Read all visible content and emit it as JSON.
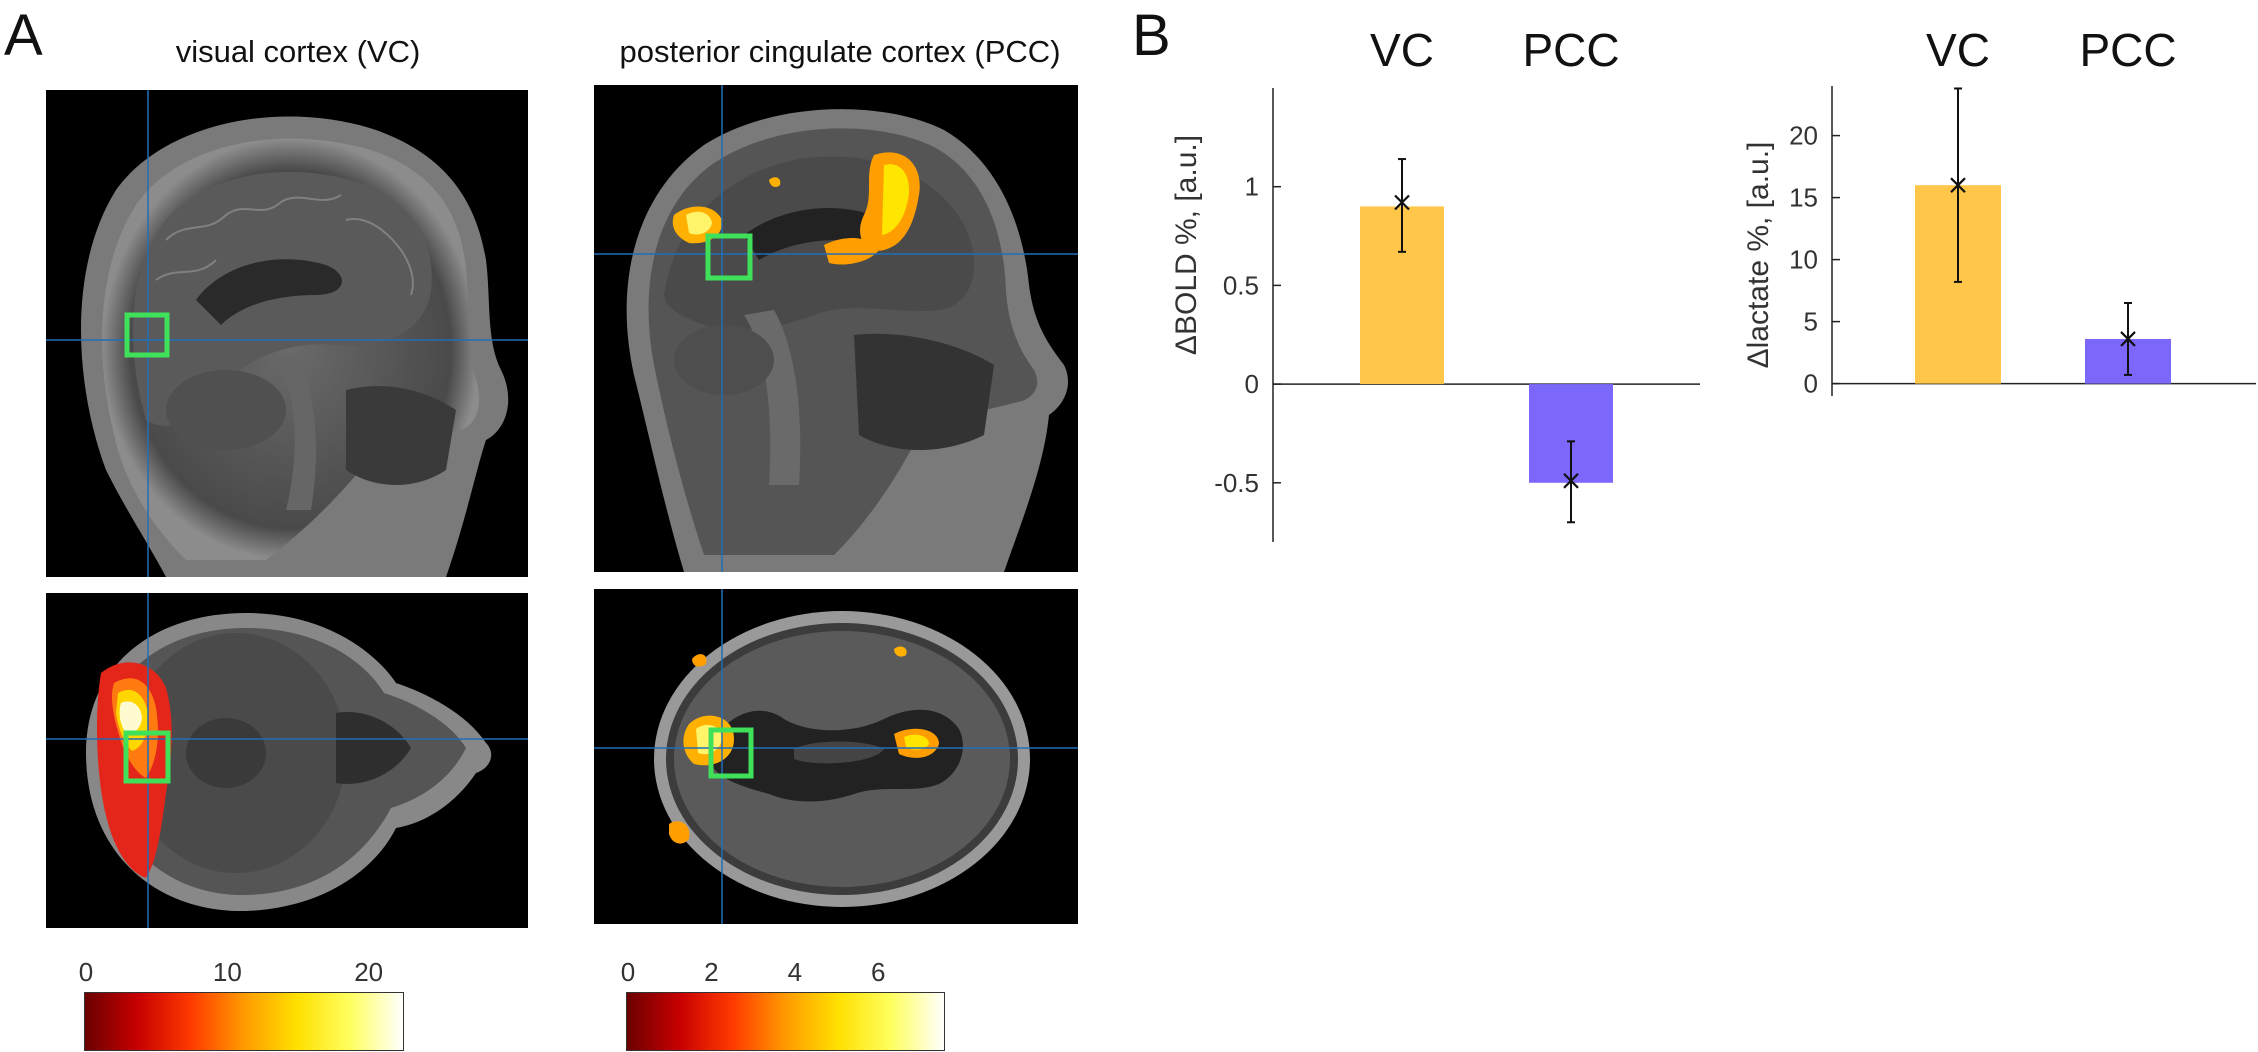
{
  "panels": {
    "A": {
      "letter": "A",
      "columns": [
        {
          "title": "visual cortex (VC)"
        },
        {
          "title": "posterior cingulate cortex (PCC)"
        }
      ],
      "colorbars": [
        {
          "ticks": [
            "0",
            "10",
            "20"
          ],
          "tick_values": [
            0,
            10,
            20
          ],
          "max": 22.5
        },
        {
          "ticks": [
            "0",
            "2",
            "4",
            "6"
          ],
          "tick_values": [
            0,
            2,
            4,
            6
          ],
          "max": 7.6
        }
      ]
    },
    "B": {
      "letter": "B"
    }
  },
  "colors": {
    "vc_bar": "#FFC64A",
    "pcc_bar": "#7B68FA",
    "roi_box": "#3FE05A",
    "crosshair": "#1F6FB8",
    "activation_hot": "#FFE600",
    "activation_red": "#E4251A"
  },
  "chart_data": [
    {
      "type": "bar",
      "categories": [
        "VC",
        "PCC"
      ],
      "values": [
        0.9,
        -0.5
      ],
      "error_low": [
        0.67,
        -0.7
      ],
      "error_high": [
        1.14,
        -0.29
      ],
      "markers": [
        0.92,
        -0.49
      ],
      "ylabel": "ΔBOLD %, [a.u.]",
      "ylim": [
        -0.8,
        1.5
      ],
      "yticks": [
        -0.5,
        0,
        0.5,
        1
      ],
      "ytick_labels": [
        "-0.5",
        "0",
        "0.5",
        "1"
      ],
      "colors": [
        "#FFC64A",
        "#7B68FA"
      ]
    },
    {
      "type": "bar",
      "categories": [
        "VC",
        "PCC"
      ],
      "values": [
        16,
        3.6
      ],
      "error_low": [
        8.2,
        0.7
      ],
      "error_high": [
        23.8,
        6.5
      ],
      "markers": [
        16,
        3.6
      ],
      "ylabel": "Δlactate %, [a.u.]",
      "ylim": [
        -1,
        24
      ],
      "yticks": [
        0,
        5,
        10,
        15,
        20
      ],
      "ytick_labels": [
        "0",
        "5",
        "10",
        "15",
        "20"
      ],
      "colors": [
        "#FFC64A",
        "#7B68FA"
      ]
    }
  ]
}
